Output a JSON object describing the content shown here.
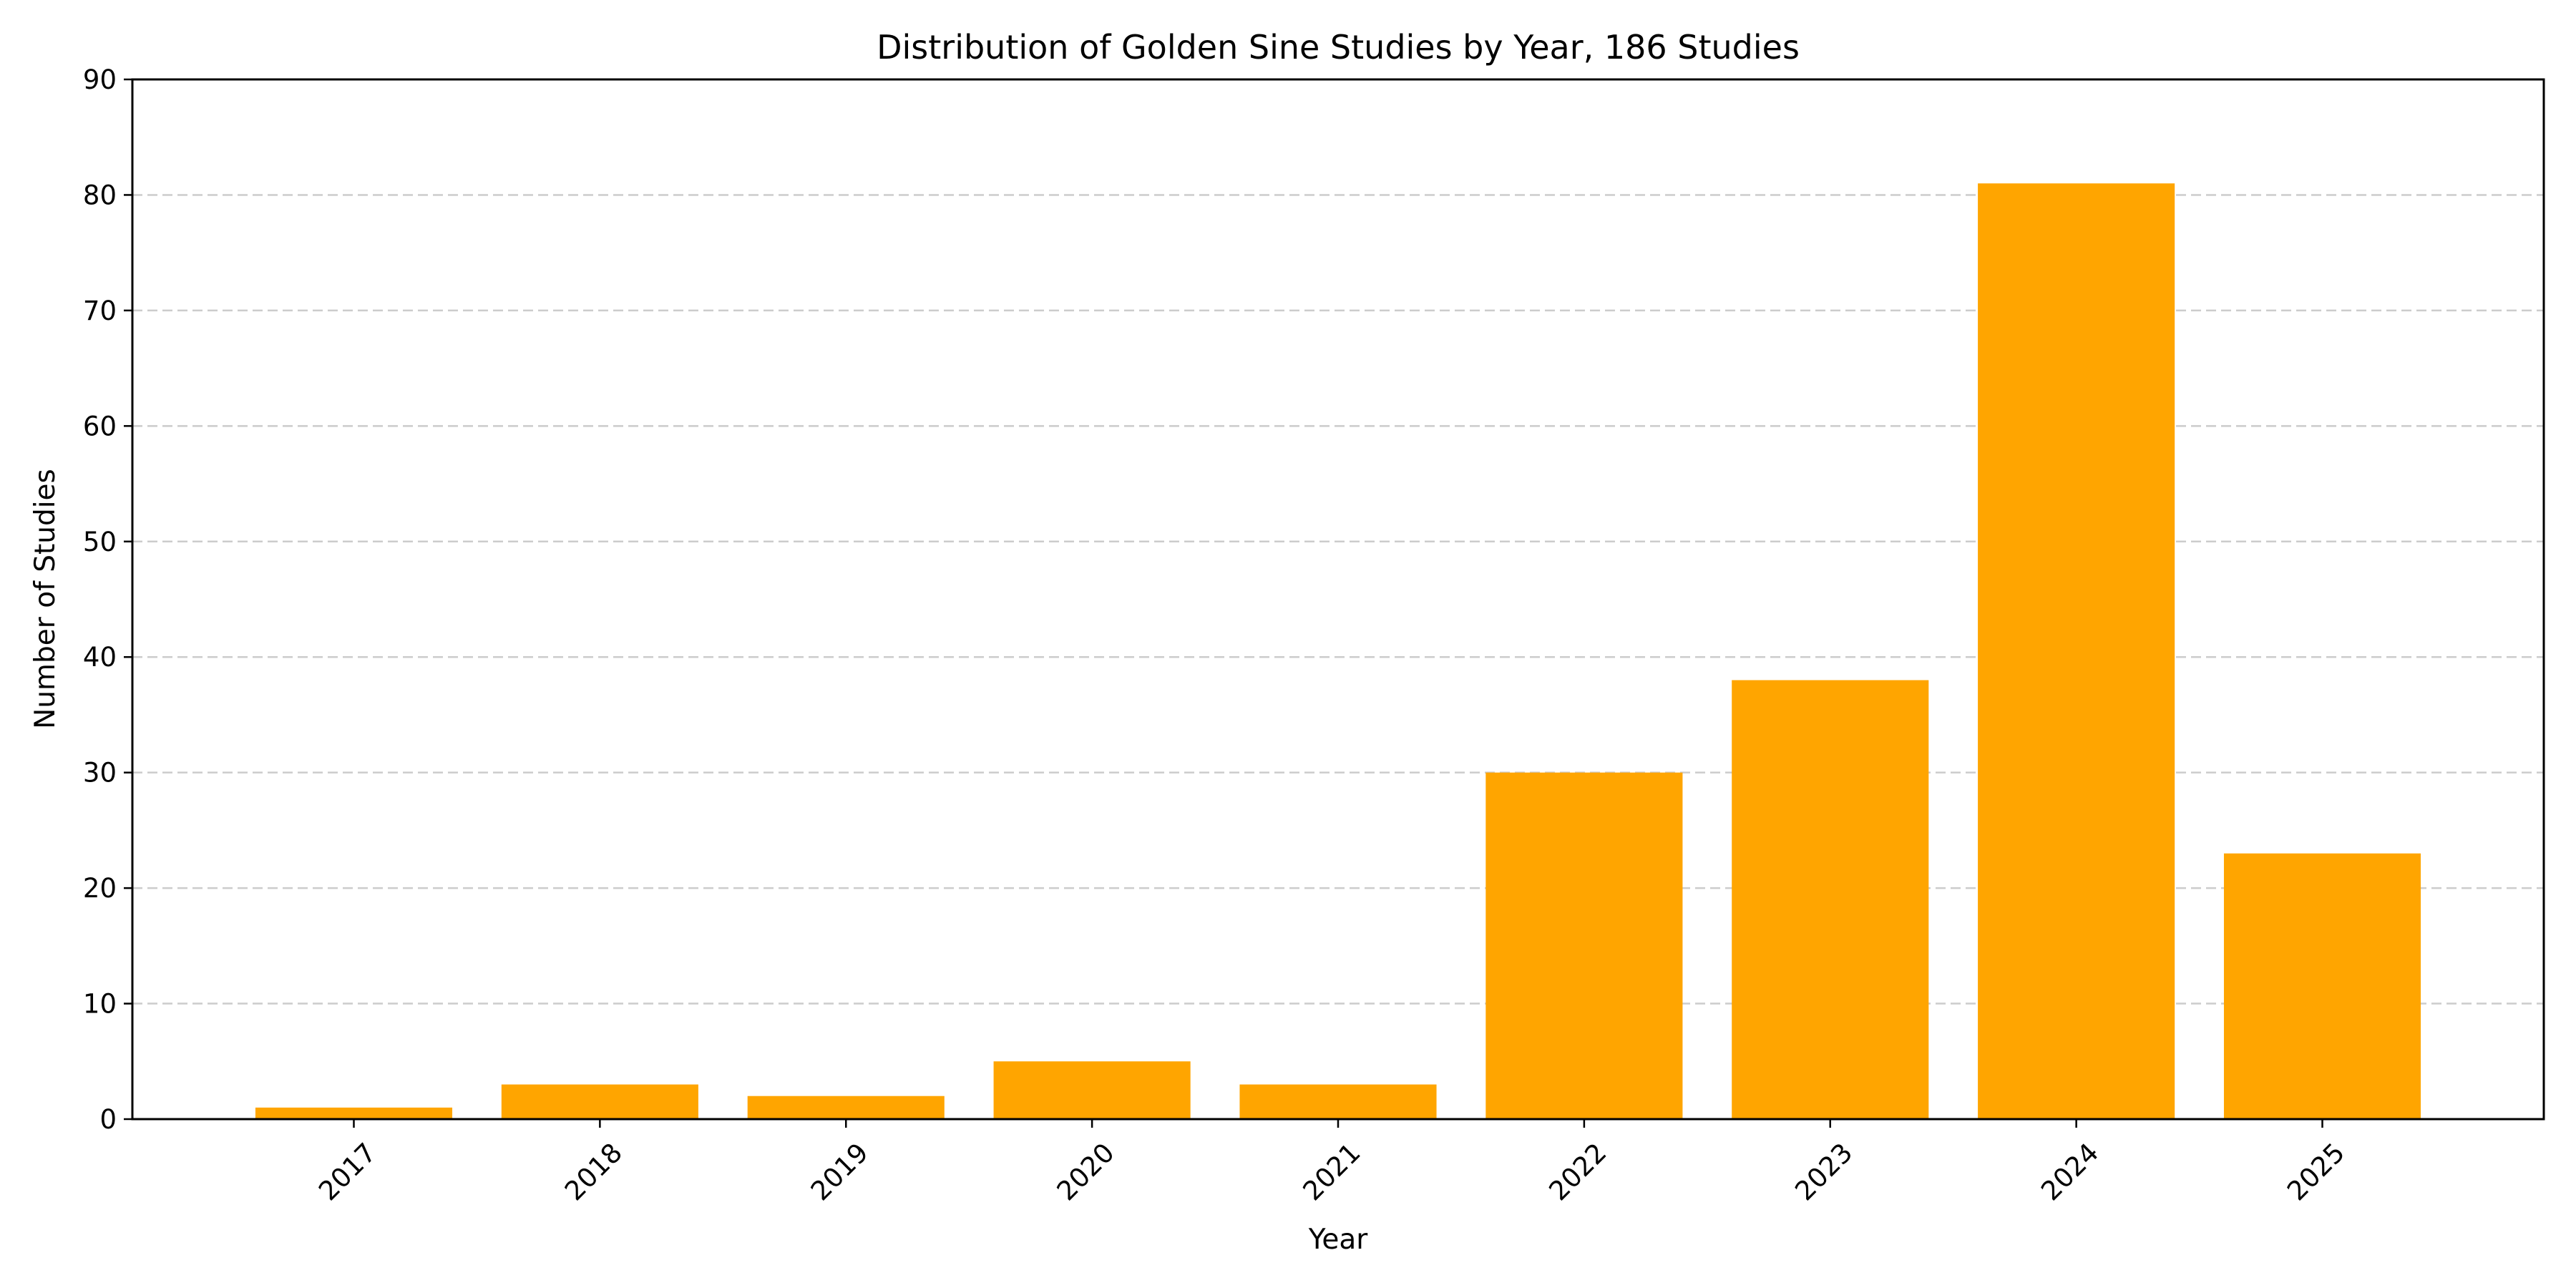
{
  "chart_data": {
    "type": "bar",
    "title": "Distribution of Golden Sine Studies by Year, 186 Studies",
    "xlabel": "Year",
    "ylabel": "Number of Studies",
    "categories": [
      "2017",
      "2018",
      "2019",
      "2020",
      "2021",
      "2022",
      "2023",
      "2024",
      "2025"
    ],
    "values": [
      1,
      3,
      2,
      5,
      3,
      30,
      38,
      81,
      23
    ],
    "ylim": [
      0,
      90
    ],
    "yticks": [
      0,
      10,
      20,
      30,
      40,
      50,
      60,
      70,
      80,
      90
    ],
    "xtick_rotation_deg": 45,
    "grid": "y-dashed",
    "legend": "none",
    "bar_color": "#FFA500"
  }
}
